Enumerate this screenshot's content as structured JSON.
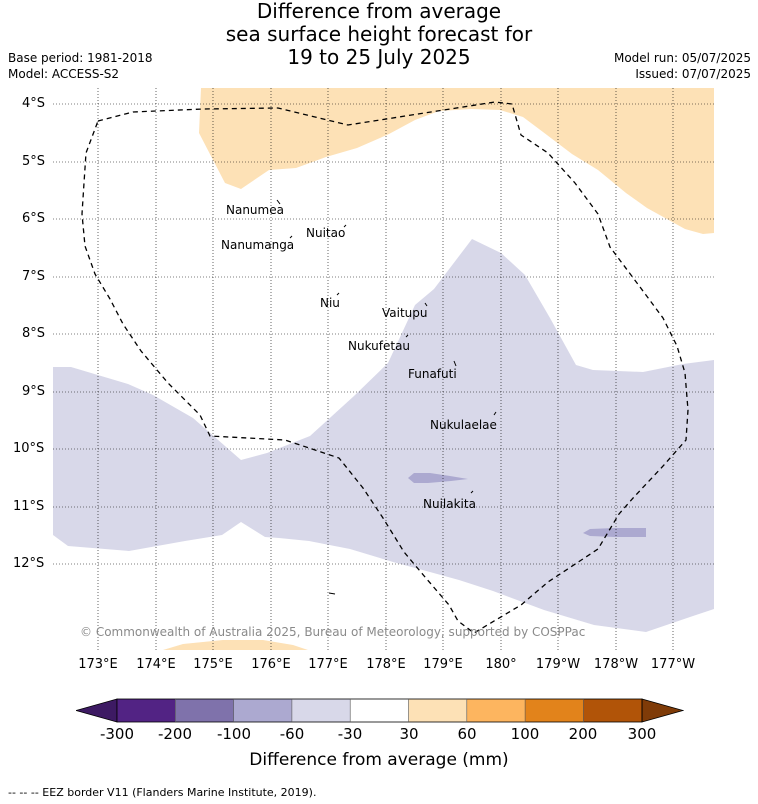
{
  "title": {
    "line1": "Difference from average",
    "line2": "sea surface height forecast for",
    "line3": "19 to 25 July 2025"
  },
  "meta_left": {
    "base_period": "Base period: 1981-2018",
    "model": "Model: ACCESS-S2"
  },
  "meta_right": {
    "model_run": "Model run: 05/07/2025",
    "issued": "Issued: 07/07/2025"
  },
  "lat_labels": [
    "4°S",
    "5°S",
    "6°S",
    "7°S",
    "8°S",
    "9°S",
    "10°S",
    "11°S",
    "12°S"
  ],
  "lon_labels": [
    "173°E",
    "174°E",
    "175°E",
    "176°E",
    "177°E",
    "178°E",
    "179°E",
    "180°",
    "179°W",
    "178°W",
    "177°W"
  ],
  "places": [
    "Nanumea",
    "Nuitao",
    "Nanumanga",
    "Niu",
    "Vaitupu",
    "Nukufetau",
    "Funafuti",
    "Nukulaelae",
    "Nuilakita"
  ],
  "copyright": "© Commonwealth of Australia 2025, Bureau of Meteorology, supported by COSPPac",
  "colorbar": {
    "ticks": [
      "-300",
      "-200",
      "-100",
      "-60",
      "-30",
      "30",
      "60",
      "100",
      "200",
      "300"
    ],
    "colors": [
      "#3d1a63",
      "#522384",
      "#7f72ab",
      "#aca9d0",
      "#d8d8e9",
      "#ffffff",
      "#fde1b6",
      "#fdb55f",
      "#e2831b",
      "#b15408",
      "#7f3b08"
    ],
    "title": "Difference from average (mm)"
  },
  "footnote": "-- -- -- EEZ border V11 (Flanders Marine Institute, 2019)."
}
